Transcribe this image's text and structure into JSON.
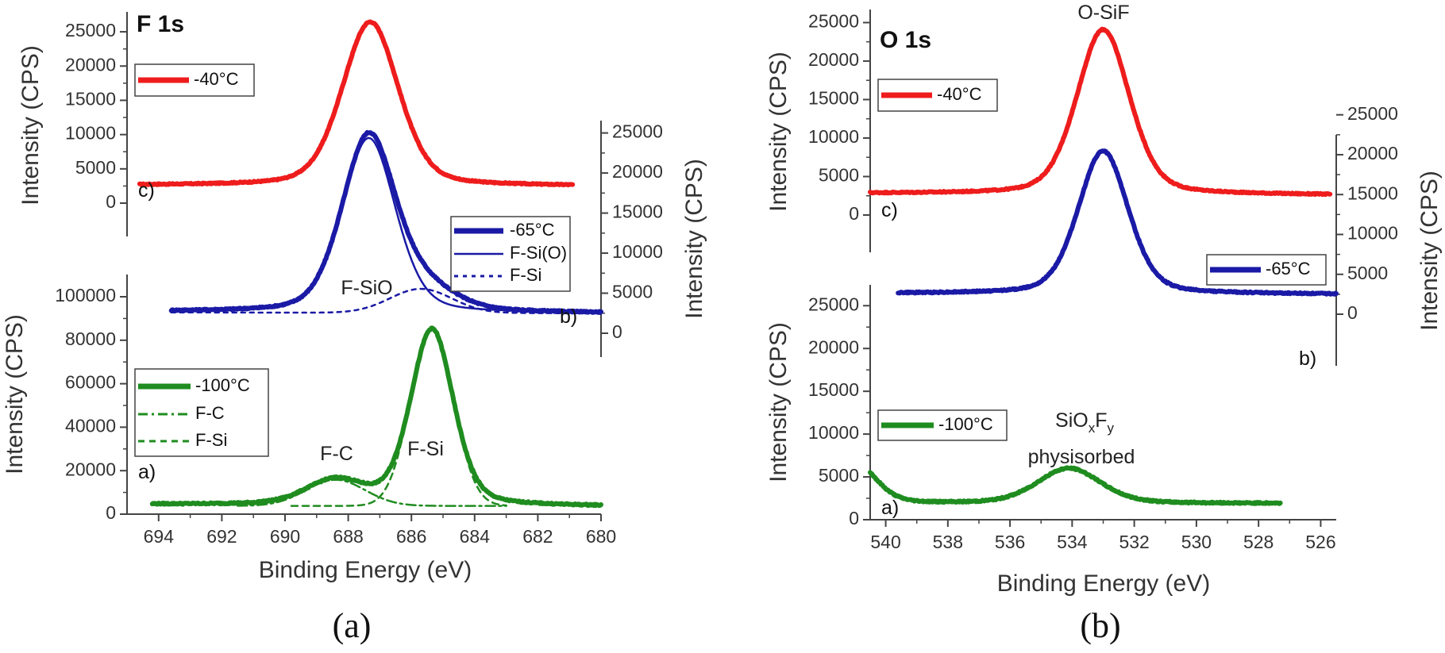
{
  "chart_data": [
    {
      "type": "line",
      "panel_caption": "(a)",
      "title": "F 1s",
      "xlabel": "Binding Energy (eV)",
      "x_ticks": [
        "694",
        "692",
        "690",
        "688",
        "686",
        "684",
        "682",
        "680"
      ],
      "xlim": [
        695,
        680
      ],
      "subplots": [
        {
          "label": "c)",
          "ylabel": "Intensity (CPS)",
          "y_axis_side": "left",
          "ylim": [
            0,
            27000
          ],
          "y_ticks": [
            "0",
            "5000",
            "10000",
            "15000",
            "20000",
            "25000"
          ],
          "legend": [
            {
              "name": "-40°C",
              "color": "#ee1c1c",
              "style": "solid-thick"
            }
          ],
          "series": [
            {
              "name": "-40°C",
              "color": "#ee1c1c",
              "shape": "voigt",
              "x_range": [
                694.6,
                680.9
              ],
              "baseline_left": 2600,
              "baseline_right": 2500,
              "peaks": [
                {
                  "center": 687.3,
                  "height": 23900,
                  "fwhm": 2.1
                }
              ]
            }
          ]
        },
        {
          "label": "b)",
          "ylabel": "Intensity (CPS)",
          "y_axis_side": "right",
          "ylim": [
            0,
            27000
          ],
          "y_ticks": [
            "0",
            "5000",
            "10000",
            "15000",
            "20000",
            "25000"
          ],
          "legend": [
            {
              "name": "-65°C",
              "color": "#1a1aa6",
              "style": "solid-thick"
            },
            {
              "name": "F-Si(O)",
              "color": "#1a1aa6",
              "style": "solid-thin"
            },
            {
              "name": "F-Si",
              "color": "#1a1aa6",
              "style": "dotted"
            }
          ],
          "series": [
            {
              "name": "-65°C",
              "color": "#1a1aa6",
              "shape": "voigt",
              "x_range": [
                693.6,
                680.0
              ],
              "baseline_left": 2700,
              "baseline_right": 2500,
              "peaks": [
                {
                  "center": 687.35,
                  "height": 22000,
                  "fwhm": 2.0
                },
                {
                  "center": 685.5,
                  "height": 2600,
                  "fwhm": 2.2
                }
              ]
            },
            {
              "name": "F-Si(O)",
              "color": "#1a1aa6",
              "shape": "voigt",
              "x_range": [
                690.3,
                680.0
              ],
              "baseline_left": 2600,
              "baseline_right": 2500,
              "peaks": [
                {
                  "center": 687.35,
                  "height": 21800,
                  "fwhm": 2.0
                }
              ]
            },
            {
              "name": "F-Si",
              "color": "#1a1aa6",
              "shape": "gauss",
              "x_range": [
                693.6,
                680.0
              ],
              "baseline_left": 2600,
              "baseline_right": 2500,
              "peaks": [
                {
                  "center": 685.7,
                  "height": 3000,
                  "fwhm": 2.3
                }
              ]
            }
          ]
        },
        {
          "label": "a)",
          "ylabel": "Intensity (CPS)",
          "y_axis_side": "left",
          "ylim": [
            0,
            110000
          ],
          "y_ticks": [
            "0",
            "20000",
            "40000",
            "60000",
            "80000",
            "100000"
          ],
          "legend": [
            {
              "name": "-100°C",
              "color": "#1f8c1f",
              "style": "solid-thick"
            },
            {
              "name": "F-C",
              "color": "#1f8c1f",
              "style": "dashdot"
            },
            {
              "name": "F-Si",
              "color": "#1f8c1f",
              "style": "dashed"
            }
          ],
          "series": [
            {
              "name": "-100°C",
              "color": "#1f8c1f",
              "shape": "voigt",
              "x_range": [
                694.2,
                680.0
              ],
              "baseline_left": 4500,
              "baseline_right": 3600,
              "peaks": [
                {
                  "center": 688.4,
                  "height": 11200,
                  "fwhm": 2.2
                },
                {
                  "center": 685.35,
                  "height": 81000,
                  "fwhm": 1.6
                }
              ]
            },
            {
              "name": "F-C",
              "color": "#1f8c1f",
              "shape": "gauss",
              "x_range": [
                691.5,
                683.0
              ],
              "baseline_left": 3800,
              "baseline_right": 3800,
              "peaks": [
                {
                  "center": 688.4,
                  "height": 12000,
                  "fwhm": 2.2
                }
              ]
            },
            {
              "name": "F-Si",
              "color": "#1f8c1f",
              "shape": "gauss",
              "x_range": [
                689.8,
                683.0
              ],
              "baseline_left": 3800,
              "baseline_right": 3800,
              "peaks": [
                {
                  "center": 685.35,
                  "height": 81000,
                  "fwhm": 1.6
                }
              ]
            }
          ]
        }
      ],
      "annotations": [
        "F-SiO",
        "F-C",
        "F-Si"
      ]
    },
    {
      "type": "line",
      "panel_caption": "(b)",
      "title": "O 1s",
      "xlabel": "Binding Energy (eV)",
      "x_ticks": [
        "540",
        "538",
        "536",
        "534",
        "532",
        "530",
        "528",
        "526"
      ],
      "xlim": [
        540.5,
        525.5
      ],
      "subplots": [
        {
          "label": "c)",
          "ylabel": "Intensity (CPS)",
          "y_axis_side": "left",
          "ylim": [
            0,
            25500
          ],
          "y_ticks": [
            "0",
            "5000",
            "10000",
            "15000",
            "20000",
            "25000"
          ],
          "legend": [
            {
              "name": "-40°C",
              "color": "#ee1c1c",
              "style": "solid-thick"
            }
          ],
          "series": [
            {
              "name": "-40°C",
              "color": "#ee1c1c",
              "shape": "voigt",
              "x_range": [
                540.5,
                525.7
              ],
              "baseline_left": 2800,
              "baseline_right": 2600,
              "peaks": [
                {
                  "center": 533.0,
                  "height": 21400,
                  "fwhm": 2.0
                }
              ]
            }
          ]
        },
        {
          "label": "b)",
          "ylabel": "Intensity (CPS)",
          "y_axis_side": "right",
          "ylim": [
            0,
            27000
          ],
          "y_ticks": [
            "0",
            "5000",
            "10000",
            "15000",
            "20000",
            "25000"
          ],
          "legend": [
            {
              "name": "-65°C",
              "color": "#1a1aa6",
              "style": "solid-thick"
            }
          ],
          "series": [
            {
              "name": "-65°C",
              "color": "#1a1aa6",
              "shape": "voigt",
              "x_range": [
                539.6,
                525.5
              ],
              "baseline_left": 2600,
              "baseline_right": 2500,
              "peaks": [
                {
                  "center": 533.0,
                  "height": 17900,
                  "fwhm": 1.9
                }
              ]
            }
          ]
        },
        {
          "label": "a)",
          "ylabel": "Intensity (CPS)",
          "y_axis_side": "left",
          "ylim": [
            0,
            27500
          ],
          "y_ticks": [
            "0",
            "5000",
            "10000",
            "15000",
            "20000",
            "25000"
          ],
          "legend": [
            {
              "name": "-100°C",
              "color": "#1f8c1f",
              "style": "solid-thick"
            }
          ],
          "series": [
            {
              "name": "-100°C",
              "color": "#1f8c1f",
              "shape": "voigt",
              "x_range": [
                540.5,
                527.3
              ],
              "baseline_left": 1900,
              "baseline_right": 1900,
              "peaks": [
                {
                  "center": 534.1,
                  "height": 4100,
                  "fwhm": 2.4
                },
                {
                  "center": 541.0,
                  "height": 4800,
                  "fwhm": 1.6
                }
              ]
            }
          ]
        }
      ],
      "annotations": [
        "O-SiF",
        "SiOxFy",
        "physisorbed"
      ]
    }
  ]
}
